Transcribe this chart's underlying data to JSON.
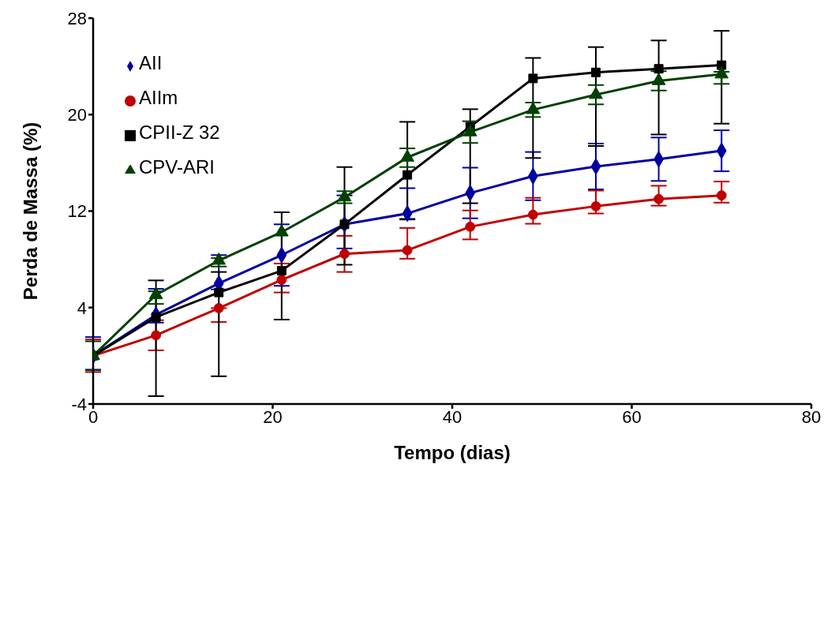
{
  "chart_data": {
    "type": "line",
    "xlabel": "Tempo (dias)",
    "ylabel": "Perda de Massa (%)",
    "x": [
      0,
      7,
      14,
      21,
      28,
      35,
      42,
      49,
      56,
      63,
      70
    ],
    "xlim": [
      0,
      80
    ],
    "xticks": [
      0,
      20,
      40,
      60,
      80
    ],
    "ylim": [
      -4,
      28
    ],
    "yticks": [
      -4,
      4,
      12,
      20,
      28
    ],
    "grid": false,
    "legend": "top left",
    "line_style": "solid",
    "series": [
      {
        "name": "AII",
        "color": "#0000a0",
        "marker": "diamond",
        "values": [
          0,
          3.4,
          6.0,
          8.35,
          10.9,
          11.8,
          13.5,
          14.9,
          15.7,
          16.3,
          17.0
        ],
        "errors": [
          [
            -1.15,
            1.55
          ],
          [
            2.75,
            5.55
          ],
          [
            5.5,
            8.35
          ],
          [
            5.8,
            10.9
          ],
          [
            8.9,
            13.3
          ],
          [
            11.3,
            13.9
          ],
          [
            11.4,
            15.6
          ],
          [
            12.9,
            16.9
          ],
          [
            13.8,
            17.6
          ],
          [
            14.5,
            18.1
          ],
          [
            15.3,
            18.7
          ]
        ]
      },
      {
        "name": "AIIm",
        "color": "#c00000",
        "marker": "circle",
        "values": [
          0,
          1.7,
          3.95,
          6.3,
          8.45,
          8.75,
          10.7,
          11.7,
          12.4,
          13.0,
          13.3
        ],
        "errors": [
          [
            -1.35,
            1.35
          ],
          [
            0.45,
            2.95
          ],
          [
            2.8,
            3.95
          ],
          [
            5.25,
            7.65
          ],
          [
            6.95,
            9.95
          ],
          [
            8.05,
            10.6
          ],
          [
            9.65,
            12.05
          ],
          [
            10.95,
            13.1
          ],
          [
            11.8,
            13.7
          ],
          [
            12.45,
            14.1
          ],
          [
            12.7,
            14.45
          ]
        ]
      },
      {
        "name": "CPII-Z 32",
        "color": "#000000",
        "marker": "square",
        "values": [
          0,
          3.2,
          5.25,
          7.05,
          10.9,
          15.0,
          19.0,
          23.0,
          23.5,
          23.8,
          24.1
        ],
        "errors": [
          null,
          [
            -3.35,
            6.25
          ],
          [
            -1.7,
            6.95
          ],
          [
            3.0,
            11.9
          ],
          [
            7.55,
            15.65
          ],
          [
            11.35,
            19.4
          ],
          [
            12.65,
            20.45
          ],
          [
            16.4,
            24.7
          ],
          [
            17.4,
            25.6
          ],
          [
            18.35,
            26.15
          ],
          [
            19.25,
            26.95
          ]
        ]
      },
      {
        "name": "CPV-ARI",
        "color": "#004000",
        "marker": "triangle",
        "values": [
          0,
          5.05,
          7.9,
          10.25,
          13.15,
          16.45,
          18.55,
          20.4,
          21.65,
          22.8,
          23.35
        ],
        "errors": [
          [
            -1.2,
            1.2
          ],
          [
            4.3,
            5.35
          ],
          [
            7.4,
            8.1
          ],
          null,
          [
            12.65,
            13.65
          ],
          [
            15.65,
            17.2
          ],
          [
            17.65,
            19.45
          ],
          [
            19.8,
            21.0
          ],
          [
            20.85,
            22.45
          ],
          [
            22.0,
            23.6
          ],
          [
            22.55,
            23.55
          ]
        ]
      }
    ]
  }
}
